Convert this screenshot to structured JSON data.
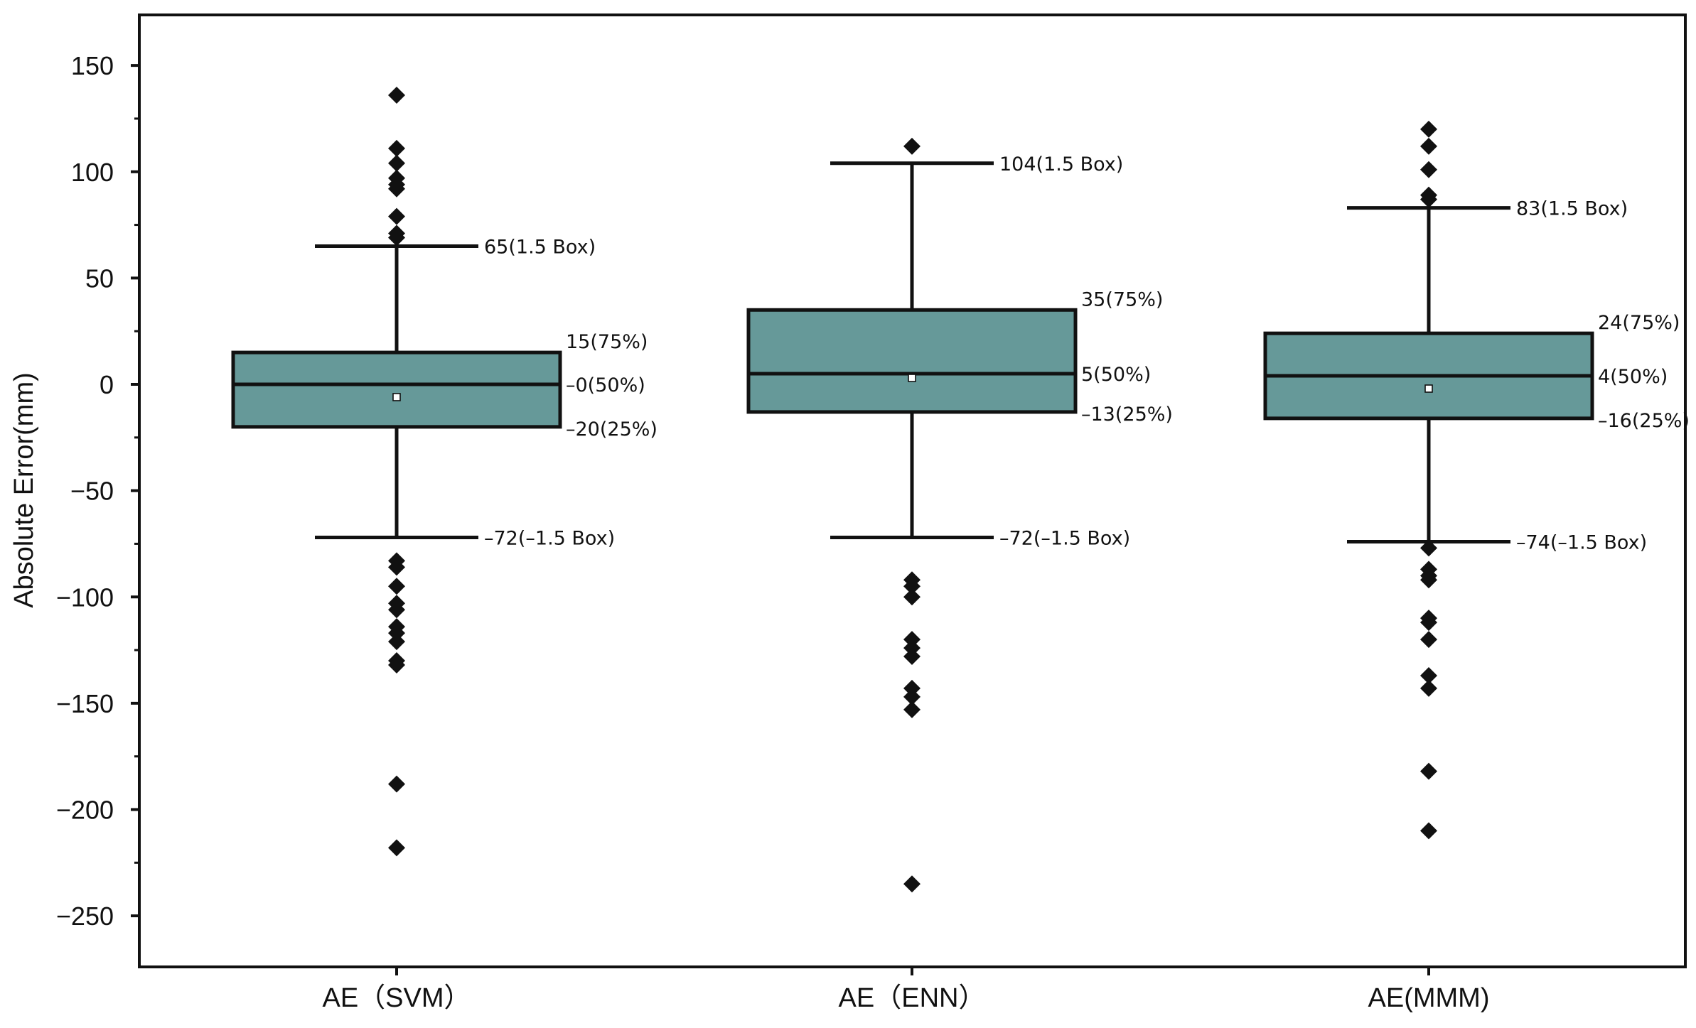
{
  "chart_data": {
    "type": "box",
    "title": "",
    "xlabel": "",
    "ylabel": "Absolute Error(mm)",
    "ylim": [
      -275,
      175
    ],
    "yticks": [
      150,
      100,
      50,
      0,
      -50,
      -100,
      -150,
      -200,
      -250
    ],
    "ytick_labels": [
      "150",
      "100",
      "50",
      "0",
      "−50",
      "−100",
      "−150",
      "−200",
      "−250"
    ],
    "grid": false,
    "box_color": "#669999",
    "series": [
      {
        "name": "AE（SVM）",
        "whisker_high": 65,
        "q3": 15,
        "median": 0,
        "q1": -20,
        "whisker_low": -72,
        "mean": -6,
        "labels": {
          "whisker_high": "65(1.5 Box)",
          "q3": "15(75%)",
          "median": "–0(50%)",
          "q1": "–20(25%)",
          "whisker_low": "–72(–1.5 Box)"
        },
        "outliers": [
          136,
          111,
          104,
          97,
          94,
          92,
          79,
          71,
          69,
          -83,
          -86,
          -95,
          -103,
          -106,
          -114,
          -117,
          -121,
          -130,
          -132,
          -188,
          -218
        ]
      },
      {
        "name": "AE（ENN）",
        "whisker_high": 104,
        "q3": 35,
        "median": 5,
        "q1": -13,
        "whisker_low": -72,
        "mean": 3,
        "labels": {
          "whisker_high": "104(1.5 Box)",
          "q3": "35(75%)",
          "median": "5(50%)",
          "q1": "–13(25%)",
          "whisker_low": "–72(–1.5 Box)"
        },
        "outliers": [
          112,
          -92,
          -95,
          -100,
          -120,
          -124,
          -128,
          -143,
          -147,
          -153,
          -235
        ]
      },
      {
        "name": "AE(MMM)",
        "whisker_high": 83,
        "q3": 24,
        "median": 4,
        "q1": -16,
        "whisker_low": -74,
        "mean": -2,
        "labels": {
          "whisker_high": "83(1.5 Box)",
          "q3": "24(75%)",
          "median": "4(50%)",
          "q1": "–16(25%)",
          "whisker_low": "–74(–1.5 Box)"
        },
        "outliers": [
          120,
          112,
          101,
          89,
          87,
          -77,
          -87,
          -90,
          -92,
          -110,
          -112,
          -120,
          -137,
          -143,
          -182,
          -210
        ]
      }
    ]
  }
}
